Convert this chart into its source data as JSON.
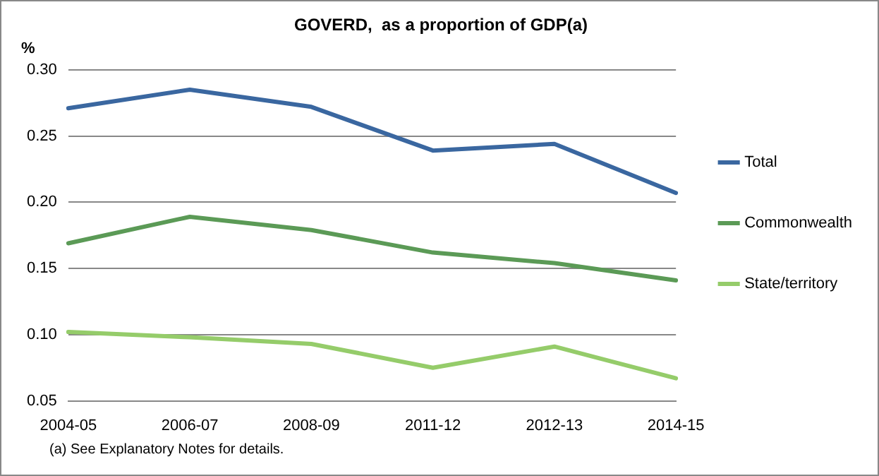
{
  "chart_data": {
    "type": "line",
    "title": "GOVERD,  as a proportion of GDP(a)",
    "ylabel": "%",
    "categories": [
      "2004-05",
      "2006-07",
      "2008-09",
      "2011-12",
      "2012-13",
      "2014-15"
    ],
    "series": [
      {
        "name": "Total",
        "color": "#3a67a0",
        "values": [
          0.271,
          0.285,
          0.272,
          0.239,
          0.244,
          0.207
        ]
      },
      {
        "name": "Commonwealth",
        "color": "#5b9a56",
        "values": [
          0.169,
          0.189,
          0.179,
          0.162,
          0.154,
          0.141
        ]
      },
      {
        "name": "State/territory",
        "color": "#95cc6a",
        "values": [
          0.102,
          0.098,
          0.093,
          0.075,
          0.091,
          0.067
        ]
      }
    ],
    "ylim": [
      0.05,
      0.3
    ],
    "yticks": [
      0.05,
      {
        "value": 0.1,
        "label": "0.10"
      },
      0.15,
      {
        "value": 0.2,
        "label": "0.20"
      },
      0.25,
      {
        "value": 0.3,
        "label": "0.30"
      }
    ],
    "grid": "y",
    "legend": "right",
    "marker": "none",
    "line_style": "solid",
    "annotations": [
      "(a) See Explanatory Notes for details."
    ]
  }
}
